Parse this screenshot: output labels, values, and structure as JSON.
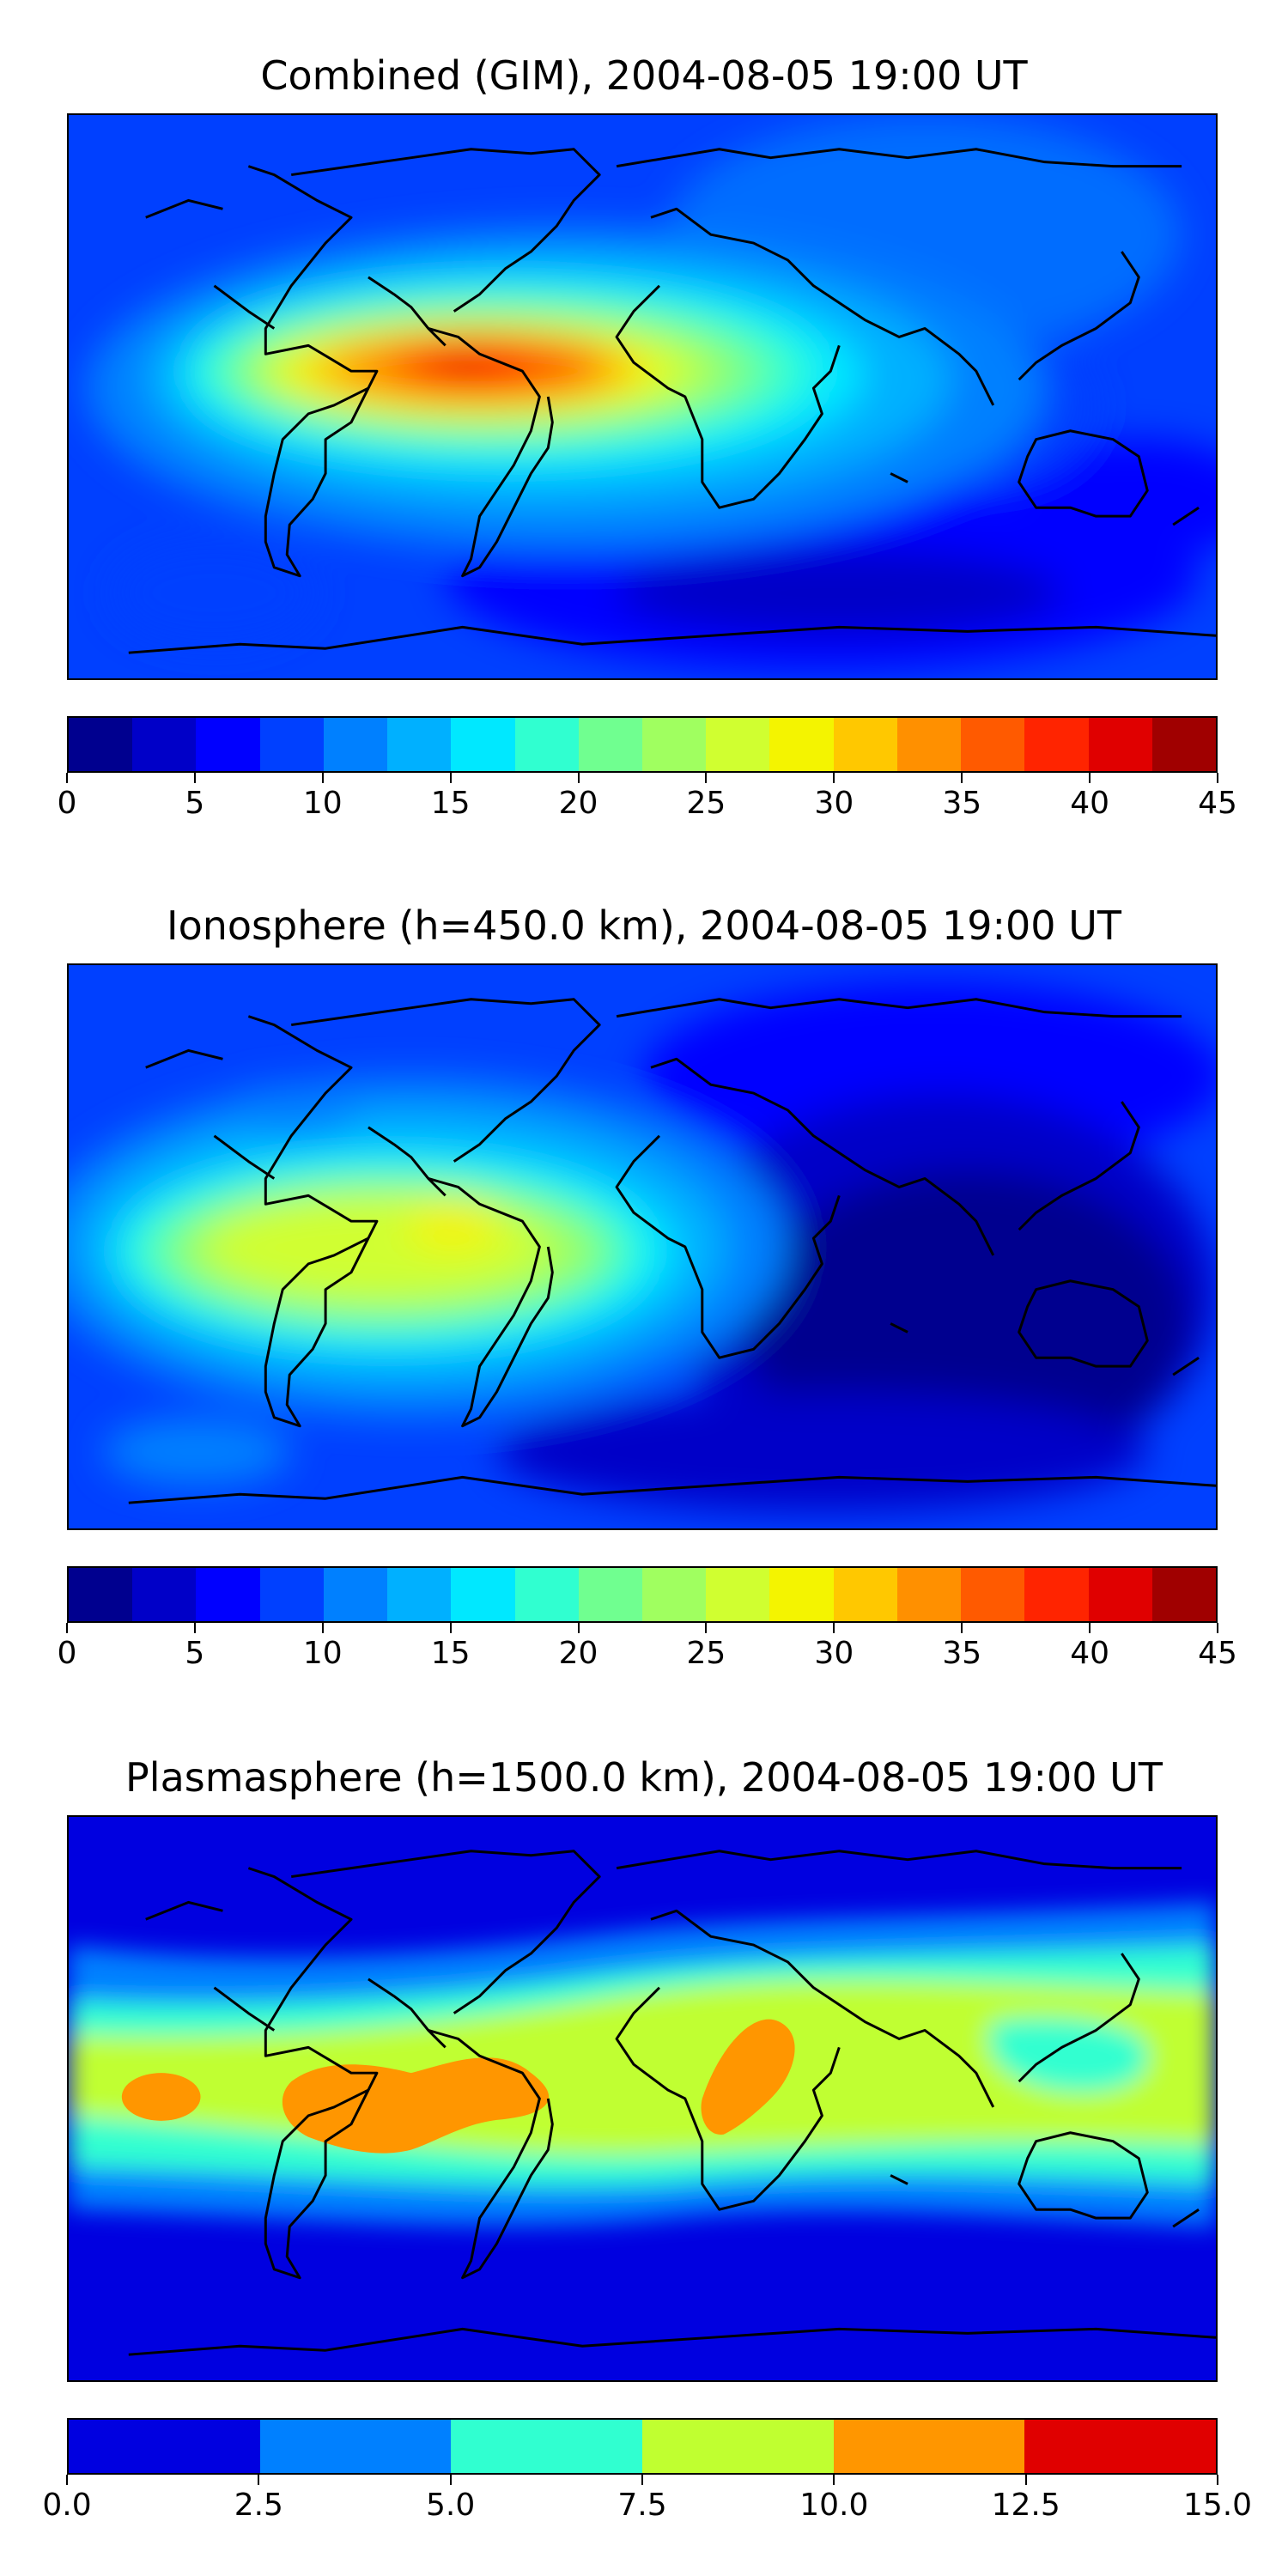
{
  "panels": [
    {
      "id": "combined",
      "title": "Combined (GIM), 2004-08-05 19:00 UT",
      "colorbar": {
        "min": 0,
        "max": 45,
        "step": 2.5,
        "ticks": [
          "0",
          "5",
          "10",
          "15",
          "20",
          "25",
          "30",
          "35",
          "40",
          "45"
        ],
        "colors": [
          "#00008f",
          "#0000c8",
          "#0000ff",
          "#0040ff",
          "#0080ff",
          "#00b0ff",
          "#00e8ff",
          "#30ffd0",
          "#70ff90",
          "#a0ff60",
          "#d0ff30",
          "#f4f400",
          "#ffc800",
          "#ff9000",
          "#ff5a00",
          "#ff2400",
          "#e00000",
          "#a00000"
        ]
      }
    },
    {
      "id": "ionosphere",
      "title": "Ionosphere  (h=450.0 km), 2004-08-05 19:00 UT",
      "colorbar": {
        "min": 0,
        "max": 45,
        "step": 2.5,
        "ticks": [
          "0",
          "5",
          "10",
          "15",
          "20",
          "25",
          "30",
          "35",
          "40",
          "45"
        ],
        "colors": [
          "#00008f",
          "#0000c8",
          "#0000ff",
          "#0040ff",
          "#0080ff",
          "#00b0ff",
          "#00e8ff",
          "#30ffd0",
          "#70ff90",
          "#a0ff60",
          "#d0ff30",
          "#f4f400",
          "#ffc800",
          "#ff9000",
          "#ff5a00",
          "#ff2400",
          "#e00000",
          "#a00000"
        ]
      }
    },
    {
      "id": "plasmasphere",
      "title": "Plasmasphere (h=1500.0 km), 2004-08-05 19:00 UT",
      "colorbar": {
        "min": 0,
        "max": 15,
        "step": 2.5,
        "ticks": [
          "0.0",
          "2.5",
          "5.0",
          "7.5",
          "10.0",
          "12.5",
          "15.0"
        ],
        "colors": [
          "#0000e0",
          "#0080ff",
          "#30ffd0",
          "#c0ff30",
          "#ff9600",
          "#e00000"
        ]
      }
    }
  ]
}
